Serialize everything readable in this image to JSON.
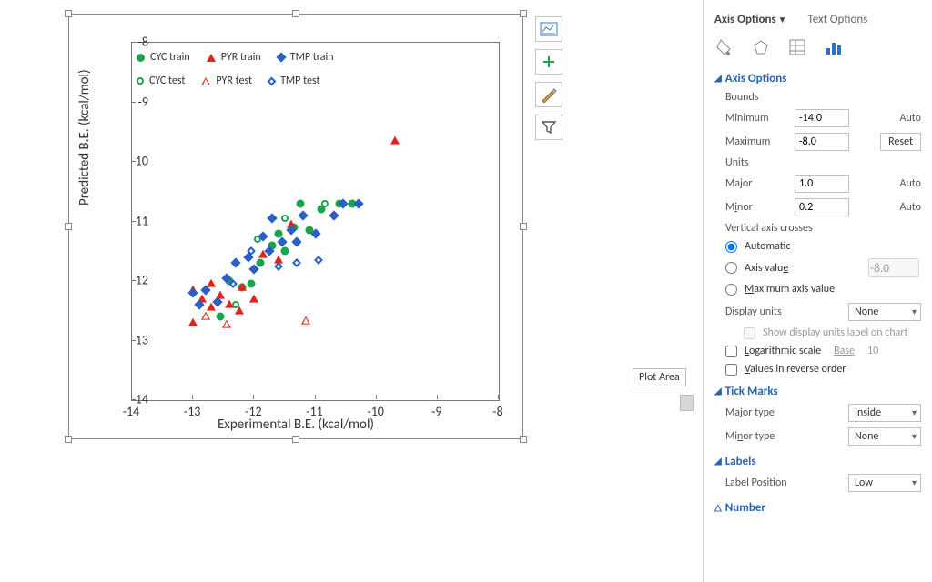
{
  "chart": {
    "xlabel": "Experimental B.E. (kcal/mol)",
    "ylabel": "Predicted B.E. (kcal/mol)",
    "xlim": [
      -14,
      -8
    ],
    "ylim": [
      -14,
      -8
    ],
    "x_tick_step": 1,
    "y_tick_step": 1,
    "background_color": "#ffffff",
    "border_color": "#777777",
    "label_fontsize": 15,
    "tick_fontsize": 14,
    "tick_major_type": "Inside",
    "colors": {
      "CYC": "#1aa34a",
      "PYR": "#e2241d",
      "TMP": "#2a5fc4"
    },
    "legend": {
      "rows": [
        [
          {
            "key": "CYC",
            "label": "CYC train",
            "shape": "circ",
            "fill": true
          },
          {
            "key": "PYR",
            "label": "PYR train",
            "shape": "tri",
            "fill": true
          },
          {
            "key": "TMP",
            "label": "TMP train",
            "shape": "dia",
            "fill": true
          }
        ],
        [
          {
            "key": "CYC",
            "label": "CYC test",
            "shape": "circ",
            "fill": false
          },
          {
            "key": "PYR",
            "label": "PYR test",
            "shape": "tri",
            "fill": false
          },
          {
            "key": "TMP",
            "label": "TMP test",
            "shape": "dia",
            "fill": false
          }
        ]
      ]
    },
    "series": {
      "CYC_train": {
        "color": "#1aa34a",
        "shape": "circ",
        "fill": true,
        "pts": [
          [
            -12.55,
            -12.6
          ],
          [
            -12.4,
            -12.0
          ],
          [
            -12.2,
            -12.1
          ],
          [
            -12.05,
            -12.05
          ],
          [
            -11.9,
            -11.7
          ],
          [
            -11.7,
            -11.4
          ],
          [
            -11.6,
            -11.2
          ],
          [
            -11.5,
            -11.5
          ],
          [
            -11.35,
            -11.1
          ],
          [
            -11.25,
            -10.7
          ],
          [
            -11.1,
            -11.15
          ],
          [
            -10.9,
            -10.8
          ],
          [
            -10.6,
            -10.7
          ],
          [
            -10.4,
            -10.7
          ]
        ]
      },
      "CYC_test": {
        "color": "#1aa34a",
        "shape": "circ",
        "fill": false,
        "pts": [
          [
            -12.3,
            -12.4
          ],
          [
            -11.95,
            -11.3
          ],
          [
            -11.5,
            -10.95
          ],
          [
            -10.85,
            -10.7
          ]
        ]
      },
      "PYR_train": {
        "color": "#e2241d",
        "shape": "tri",
        "fill": true,
        "pts": [
          [
            -13.0,
            -12.7
          ],
          [
            -13.0,
            -12.15
          ],
          [
            -12.85,
            -12.3
          ],
          [
            -12.7,
            -12.05
          ],
          [
            -12.7,
            -12.45
          ],
          [
            -12.55,
            -12.25
          ],
          [
            -12.4,
            -12.4
          ],
          [
            -12.25,
            -12.5
          ],
          [
            -12.2,
            -12.1
          ],
          [
            -12.0,
            -12.3
          ],
          [
            -11.85,
            -11.55
          ],
          [
            -11.6,
            -11.65
          ],
          [
            -11.4,
            -11.05
          ],
          [
            -9.7,
            -9.65
          ]
        ]
      },
      "PYR_test": {
        "color": "#e2241d",
        "shape": "tri",
        "fill": false,
        "pts": [
          [
            -12.8,
            -12.6
          ],
          [
            -12.45,
            -12.6
          ],
          [
            -11.15,
            -12.4
          ]
        ]
      },
      "TMP_train": {
        "color": "#2a5fc4",
        "shape": "dia",
        "fill": true,
        "pts": [
          [
            -13.0,
            -12.2
          ],
          [
            -12.9,
            -12.4
          ],
          [
            -12.8,
            -12.15
          ],
          [
            -12.6,
            -12.35
          ],
          [
            -12.45,
            -11.95
          ],
          [
            -12.3,
            -11.7
          ],
          [
            -12.1,
            -11.6
          ],
          [
            -12.0,
            -11.8
          ],
          [
            -11.85,
            -11.25
          ],
          [
            -11.75,
            -11.5
          ],
          [
            -11.7,
            -10.95
          ],
          [
            -11.55,
            -11.35
          ],
          [
            -11.4,
            -11.15
          ],
          [
            -11.3,
            -11.35
          ],
          [
            -11.2,
            -10.9
          ],
          [
            -11.0,
            -11.2
          ],
          [
            -10.7,
            -10.9
          ],
          [
            -10.55,
            -10.7
          ],
          [
            -10.3,
            -10.7
          ]
        ]
      },
      "TMP_test": {
        "color": "#2a5fc4",
        "shape": "dia",
        "fill": false,
        "pts": [
          [
            -12.35,
            -12.05
          ],
          [
            -12.05,
            -11.5
          ],
          [
            -11.6,
            -11.75
          ],
          [
            -11.3,
            -11.7
          ],
          [
            -10.95,
            -11.65
          ]
        ]
      }
    },
    "tooltip": "Plot Area"
  },
  "chart_tools": [
    "chart-elements",
    "chart-styles",
    "chart-filters"
  ],
  "pane": {
    "tabs": [
      "Axis Options",
      "Text Options"
    ],
    "active_tab": 0,
    "icon_row_active": 3,
    "sections": {
      "axis_options": {
        "title": "Axis Options",
        "bounds_label": "Bounds",
        "min_label": "Minimum",
        "min_value": "-14.0",
        "min_action": "Auto",
        "max_label": "Maximum",
        "max_value": "-8.0",
        "max_action": "Reset",
        "units_label": "Units",
        "major_label": "Major",
        "major_value": "1.0",
        "major_action": "Auto",
        "minor_label": "Minor",
        "minor_value": "0.2",
        "minor_action": "Auto",
        "cross_label": "Vertical axis crosses",
        "cross_opts": [
          "Automatic",
          "Axis value",
          "Maximum axis value"
        ],
        "cross_selected": 0,
        "axis_value": "-8.0",
        "display_units_label": "Display units",
        "display_units_value": "None",
        "show_units_label": "Show display units label on chart",
        "show_units_checked": false,
        "log_label": "Logarithmic scale",
        "log_checked": false,
        "log_base_label": "Base",
        "log_base": "10",
        "reverse_label": "Values in reverse order",
        "reverse_checked": false
      },
      "tick_marks": {
        "title": "Tick Marks",
        "major_type_label": "Major type",
        "major_type": "Inside",
        "minor_type_label": "Minor type",
        "minor_type": "None"
      },
      "labels": {
        "title": "Labels",
        "label_pos_label": "Label Position",
        "label_pos": "Low"
      },
      "number": {
        "title": "Number"
      }
    }
  }
}
